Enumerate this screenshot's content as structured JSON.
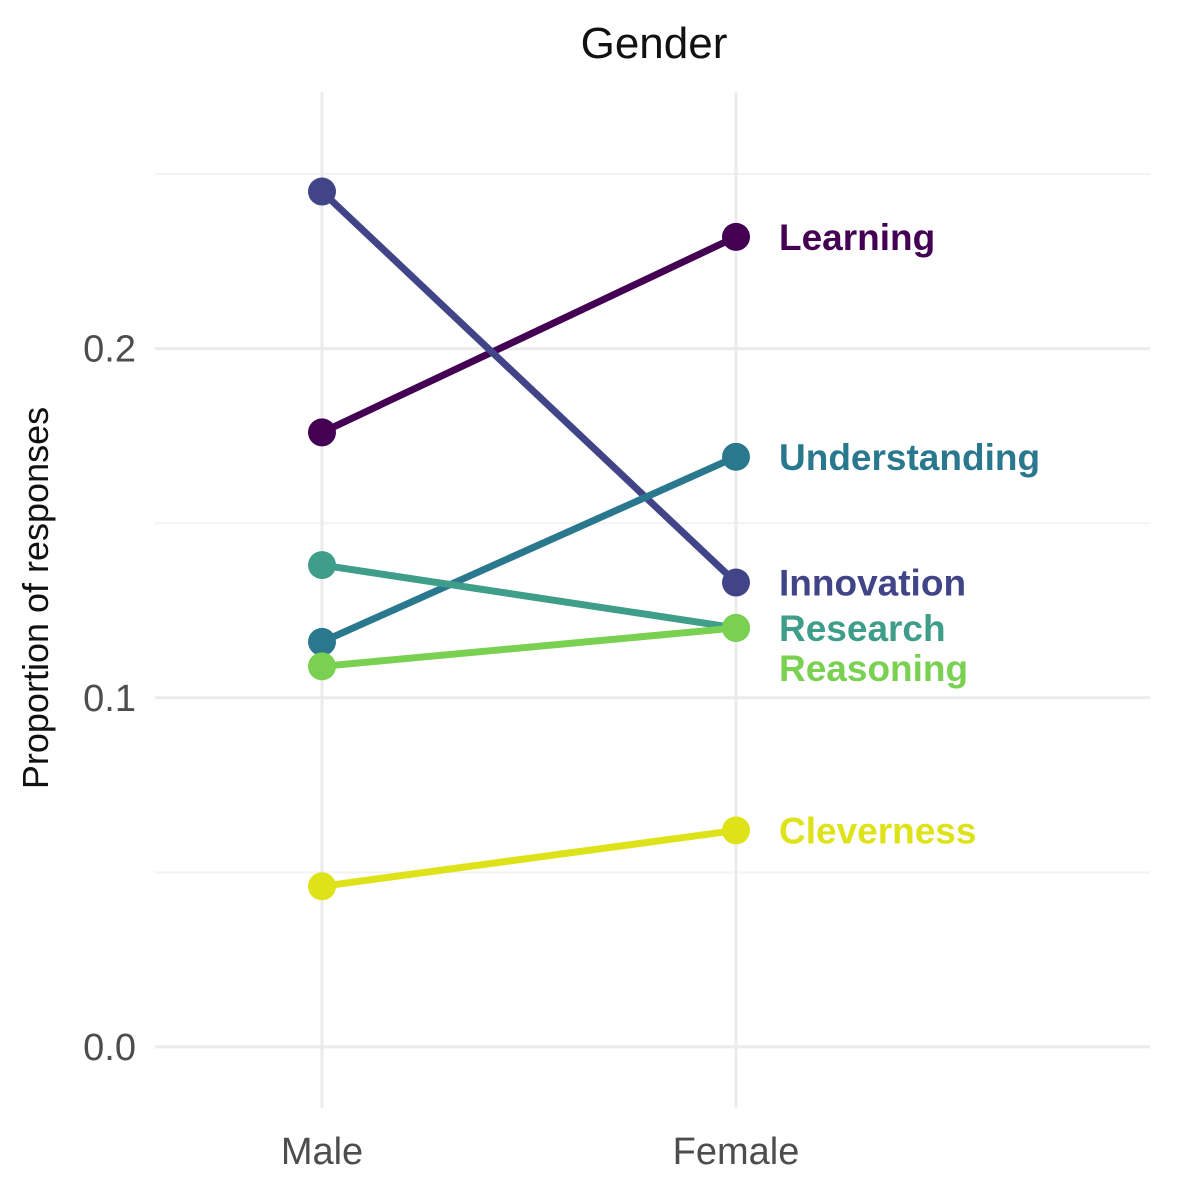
{
  "chart_data": {
    "type": "line",
    "title": "Gender",
    "xlabel": "",
    "ylabel": "Proportion of responses",
    "categories": [
      "Male",
      "Female"
    ],
    "ylim": [
      -0.0175,
      0.2735
    ],
    "yticks": [
      0.0,
      0.1,
      0.2
    ],
    "ytick_labels": [
      "0.0",
      "0.1",
      "0.2"
    ],
    "grid": true,
    "legend": "direct labels at right of lines",
    "series": [
      {
        "name": "Learning",
        "values": [
          0.176,
          0.232
        ],
        "color": "#440154"
      },
      {
        "name": "Innovation",
        "values": [
          0.245,
          0.133
        ],
        "color": "#414487"
      },
      {
        "name": "Understanding",
        "values": [
          0.116,
          0.169
        ],
        "color": "#2a788e"
      },
      {
        "name": "Research",
        "values": [
          0.138,
          0.12
        ],
        "color": "#3f9e8a"
      },
      {
        "name": "Reasoning",
        "values": [
          0.109,
          0.12
        ],
        "color": "#7ad151"
      },
      {
        "name": "Cleverness",
        "values": [
          0.046,
          0.062
        ],
        "color": "#dde318"
      }
    ]
  }
}
